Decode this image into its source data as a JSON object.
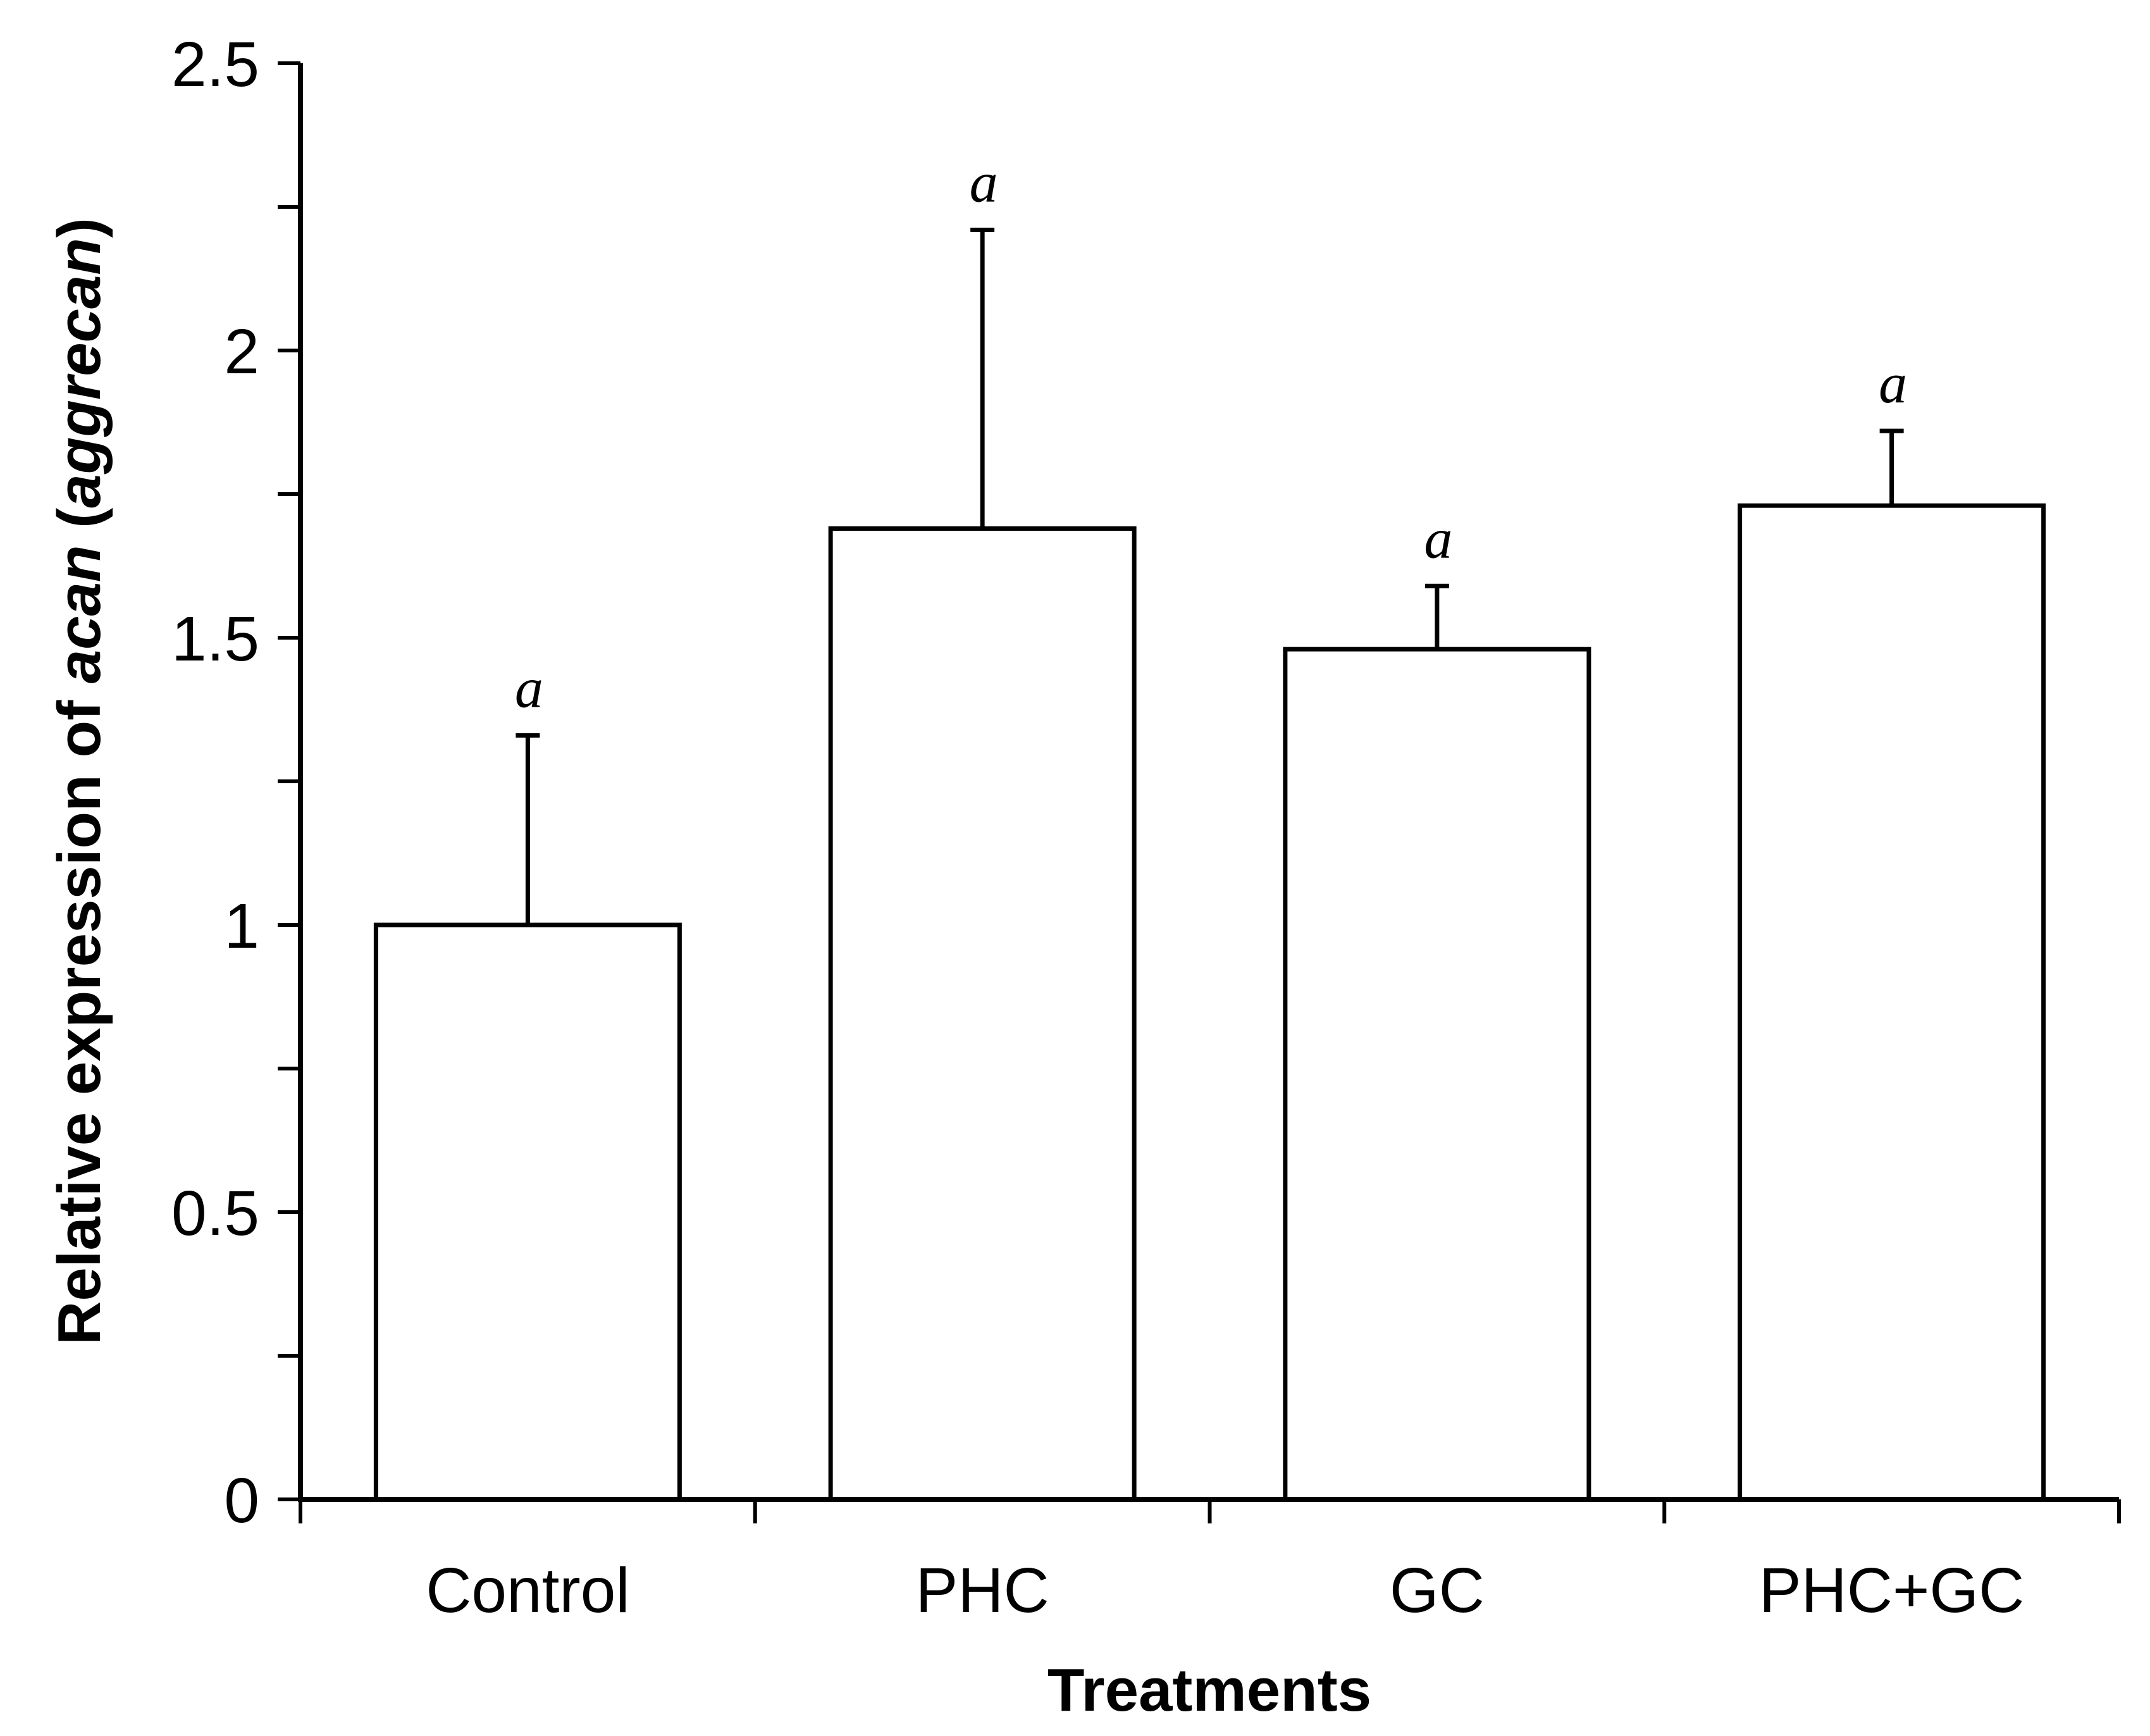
{
  "colors": {
    "bar_fill": "#ffffff",
    "stroke": "#000000",
    "background": "#ffffff"
  },
  "chart_data": {
    "type": "bar",
    "title": "",
    "categories": [
      "Control",
      "PHC",
      "GC",
      "PHC+GC"
    ],
    "values": [
      1.0,
      1.69,
      1.48,
      1.73
    ],
    "error_upper": [
      0.33,
      0.52,
      0.11,
      0.13
    ],
    "significance_letters": [
      "a",
      "a",
      "a",
      "a"
    ],
    "xlabel": "Treatments",
    "ylabel_parts": {
      "prefix": "Relative expression of ",
      "gene": "acan",
      "space": " (",
      "gene_name": "aggrecan",
      "suffix": ")"
    },
    "ylim": [
      0,
      2.5
    ],
    "y_major_ticks": [
      0,
      0.5,
      1,
      1.5,
      2,
      2.5
    ],
    "y_tick_labels": [
      "0",
      "0.5",
      "1",
      "1.5",
      "2",
      "2.5"
    ],
    "y_minor_step": 0.25,
    "grid": false,
    "legend": "none"
  }
}
